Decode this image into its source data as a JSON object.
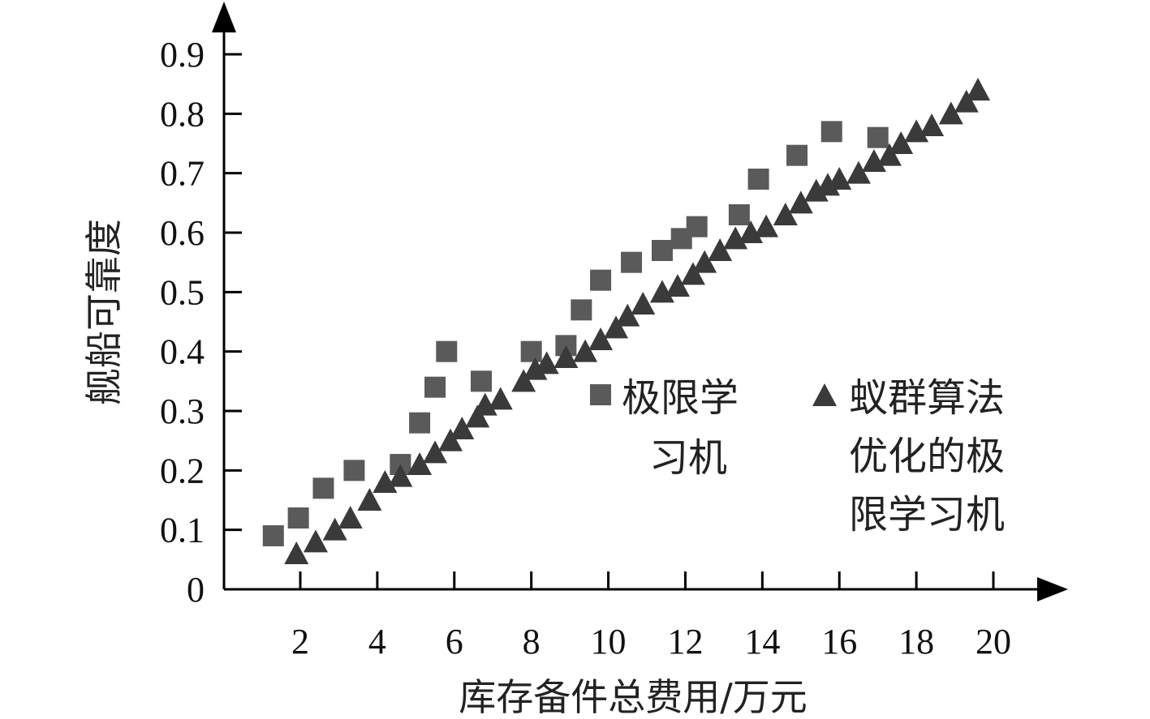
{
  "chart_data": {
    "type": "scatter",
    "xlabel": "库存备件总费用/万元",
    "ylabel": "舰船可靠度",
    "x_ticks": [
      2,
      4,
      6,
      8,
      10,
      12,
      14,
      16,
      18,
      20
    ],
    "y_ticks": [
      "0",
      "0.1",
      "0.2",
      "0.3",
      "0.4",
      "0.5",
      "0.6",
      "0.7",
      "0.8",
      "0.9"
    ],
    "xlim": [
      0,
      20.9
    ],
    "ylim": [
      0,
      0.99
    ],
    "legend_position": "center-right",
    "series": [
      {
        "name": "极限学习机",
        "legend_lines": [
          "极限学",
          "习机"
        ],
        "marker": "square",
        "color": "#5a5a5a",
        "points": [
          [
            1.3,
            0.09
          ],
          [
            1.95,
            0.12
          ],
          [
            2.6,
            0.17
          ],
          [
            3.4,
            0.2
          ],
          [
            4.6,
            0.21
          ],
          [
            5.1,
            0.28
          ],
          [
            5.5,
            0.34
          ],
          [
            5.8,
            0.4
          ],
          [
            6.7,
            0.35
          ],
          [
            8.0,
            0.4
          ],
          [
            8.9,
            0.41
          ],
          [
            9.3,
            0.47
          ],
          [
            9.8,
            0.52
          ],
          [
            10.6,
            0.55
          ],
          [
            11.4,
            0.57
          ],
          [
            11.9,
            0.59
          ],
          [
            12.3,
            0.61
          ],
          [
            13.4,
            0.63
          ],
          [
            13.9,
            0.69
          ],
          [
            14.9,
            0.73
          ],
          [
            15.8,
            0.77
          ],
          [
            17.0,
            0.76
          ]
        ]
      },
      {
        "name": "蚁群算法优化的极限学习机",
        "legend_lines": [
          "蚁群算法",
          "优化的极",
          "限学习机"
        ],
        "marker": "triangle",
        "color": "#3a3a3a",
        "points": [
          [
            1.9,
            0.06
          ],
          [
            2.4,
            0.08
          ],
          [
            2.9,
            0.1
          ],
          [
            3.3,
            0.12
          ],
          [
            3.8,
            0.15
          ],
          [
            4.2,
            0.18
          ],
          [
            4.6,
            0.19
          ],
          [
            5.1,
            0.21
          ],
          [
            5.5,
            0.23
          ],
          [
            5.9,
            0.25
          ],
          [
            6.2,
            0.27
          ],
          [
            6.6,
            0.29
          ],
          [
            6.8,
            0.31
          ],
          [
            7.2,
            0.32
          ],
          [
            7.8,
            0.35
          ],
          [
            8.1,
            0.37
          ],
          [
            8.4,
            0.38
          ],
          [
            8.9,
            0.39
          ],
          [
            9.4,
            0.4
          ],
          [
            9.8,
            0.42
          ],
          [
            10.2,
            0.44
          ],
          [
            10.5,
            0.46
          ],
          [
            10.9,
            0.48
          ],
          [
            11.4,
            0.5
          ],
          [
            11.8,
            0.51
          ],
          [
            12.2,
            0.53
          ],
          [
            12.5,
            0.55
          ],
          [
            12.9,
            0.57
          ],
          [
            13.3,
            0.59
          ],
          [
            13.7,
            0.6
          ],
          [
            14.1,
            0.61
          ],
          [
            14.6,
            0.63
          ],
          [
            15.0,
            0.65
          ],
          [
            15.4,
            0.67
          ],
          [
            15.7,
            0.68
          ],
          [
            16.0,
            0.69
          ],
          [
            16.5,
            0.7
          ],
          [
            16.9,
            0.72
          ],
          [
            17.3,
            0.73
          ],
          [
            17.6,
            0.75
          ],
          [
            18.0,
            0.77
          ],
          [
            18.4,
            0.78
          ],
          [
            18.9,
            0.8
          ],
          [
            19.3,
            0.82
          ],
          [
            19.6,
            0.84
          ]
        ]
      }
    ]
  }
}
